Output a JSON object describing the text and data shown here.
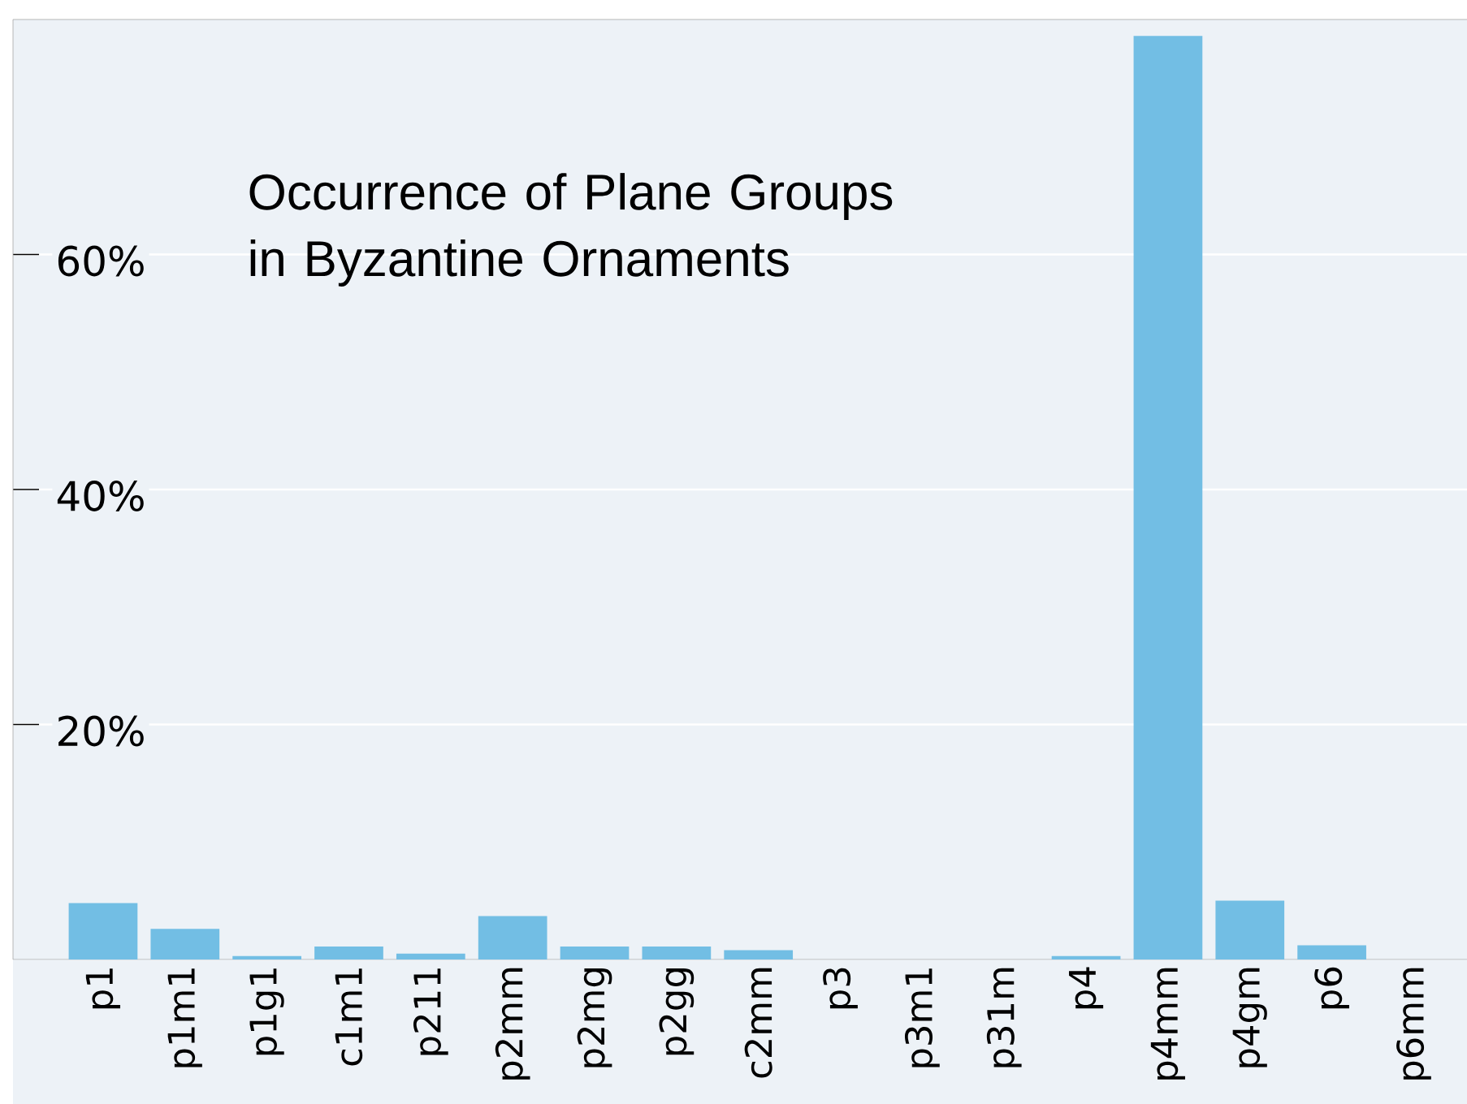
{
  "chart_data": {
    "type": "bar",
    "title": "Occurrence of Plane Groups in Byzantine Ornaments",
    "categories": [
      "p1",
      "p1m1",
      "p1g1",
      "c1m1",
      "p211",
      "p2mm",
      "p2mg",
      "p2gg",
      "c2mm",
      "p3",
      "p3m1",
      "p31m",
      "p4",
      "p4mm",
      "p4gm",
      "p6",
      "p6mm"
    ],
    "values": [
      4.8,
      2.6,
      0.3,
      1.1,
      0.5,
      3.7,
      1.1,
      1.1,
      0.8,
      0,
      0,
      0,
      0.3,
      78.6,
      5.0,
      1.2,
      0
    ],
    "color": "#72bee4",
    "ylim": [
      0,
      80
    ],
    "yticks": [
      {
        "value": 20,
        "label": "20%"
      },
      {
        "value": 40,
        "label": "40%"
      },
      {
        "value": 60,
        "label": "60%"
      }
    ],
    "grid": "y"
  }
}
